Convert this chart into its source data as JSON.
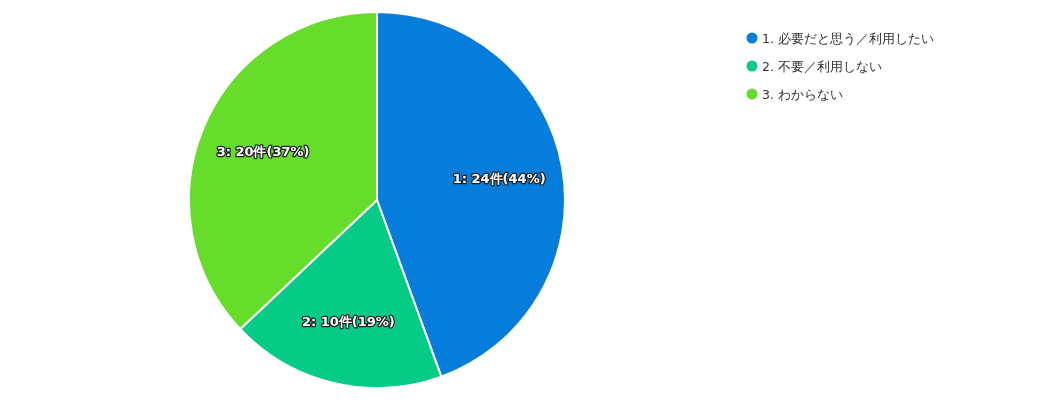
{
  "chart_data": {
    "type": "pie",
    "categories": [
      "1. 必要だと思う／利用したい",
      "2. 不要／利用しない",
      "3. わからない"
    ],
    "values": [
      24,
      10,
      20
    ],
    "colors": [
      "#077ddb",
      "#05cb87",
      "#66dd2b"
    ],
    "value_labels": [
      "1: 24件(44%)",
      "2: 10件(19%)",
      "3: 20件(37%)"
    ],
    "legend": "top right"
  }
}
